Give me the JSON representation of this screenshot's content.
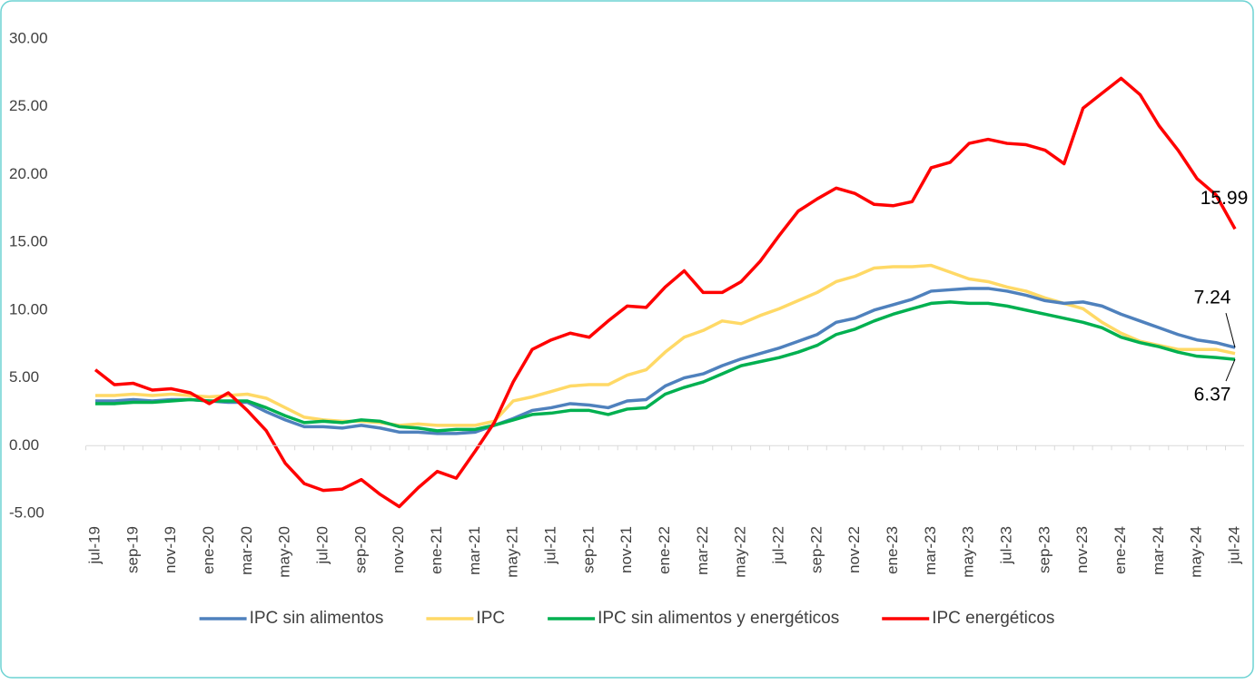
{
  "chart_data": {
    "type": "line",
    "categories": [
      "jul-19",
      null,
      "sep-19",
      null,
      "nov-19",
      null,
      "ene-20",
      null,
      "mar-20",
      null,
      "may-20",
      null,
      "jul-20",
      null,
      "sep-20",
      null,
      "nov-20",
      null,
      "ene-21",
      null,
      "mar-21",
      null,
      "may-21",
      null,
      "jul-21",
      null,
      "sep-21",
      null,
      "nov-21",
      null,
      "ene-22",
      null,
      "mar-22",
      null,
      "may-22",
      null,
      "jul-22",
      null,
      "sep-22",
      null,
      "nov-22",
      null,
      "ene-23",
      null,
      "mar-23",
      null,
      "may-23",
      null,
      "jul-23",
      null,
      "sep-23",
      null,
      "nov-23",
      null,
      "ene-24",
      null,
      "mar-24",
      null,
      "may-24",
      null,
      "jul-24"
    ],
    "series": [
      {
        "name": "IPC sin alimentos",
        "color": "#4f81bd",
        "values": [
          3.3,
          3.3,
          3.4,
          3.3,
          3.4,
          3.4,
          3.3,
          3.2,
          3.2,
          2.5,
          1.9,
          1.4,
          1.4,
          1.3,
          1.5,
          1.3,
          1.0,
          1.0,
          0.9,
          0.9,
          1.0,
          1.5,
          2.0,
          2.6,
          2.8,
          3.1,
          3.0,
          2.8,
          3.3,
          3.4,
          4.4,
          5.0,
          5.3,
          5.9,
          6.4,
          6.8,
          7.2,
          7.7,
          8.2,
          9.1,
          9.4,
          10.0,
          10.4,
          10.8,
          11.4,
          11.5,
          11.6,
          11.6,
          11.4,
          11.1,
          10.7,
          10.5,
          10.6,
          10.3,
          9.7,
          9.2,
          8.7,
          8.2,
          7.8,
          7.6,
          7.24
        ]
      },
      {
        "name": "IPC",
        "color": "#ffd966",
        "values": [
          3.7,
          3.7,
          3.8,
          3.7,
          3.8,
          3.7,
          3.6,
          3.7,
          3.8,
          3.5,
          2.8,
          2.1,
          1.9,
          1.8,
          1.8,
          1.7,
          1.5,
          1.6,
          1.5,
          1.5,
          1.5,
          1.8,
          3.3,
          3.6,
          4.0,
          4.4,
          4.5,
          4.5,
          5.2,
          5.6,
          6.9,
          8.0,
          8.5,
          9.2,
          9.0,
          9.6,
          10.1,
          10.7,
          11.3,
          12.1,
          12.5,
          13.1,
          13.2,
          13.2,
          13.3,
          12.8,
          12.3,
          12.1,
          11.7,
          11.4,
          10.9,
          10.5,
          10.1,
          9.1,
          8.3,
          7.7,
          7.4,
          7.1,
          7.1,
          7.1,
          6.8
        ]
      },
      {
        "name": "IPC sin alimentos y energéticos",
        "color": "#00b050",
        "values": [
          3.1,
          3.1,
          3.2,
          3.2,
          3.3,
          3.4,
          3.3,
          3.3,
          3.3,
          2.8,
          2.2,
          1.7,
          1.8,
          1.7,
          1.9,
          1.8,
          1.4,
          1.3,
          1.1,
          1.2,
          1.2,
          1.5,
          1.9,
          2.3,
          2.4,
          2.6,
          2.6,
          2.3,
          2.7,
          2.8,
          3.8,
          4.3,
          4.7,
          5.3,
          5.9,
          6.2,
          6.5,
          6.9,
          7.4,
          8.2,
          8.6,
          9.2,
          9.7,
          10.1,
          10.5,
          10.6,
          10.5,
          10.5,
          10.3,
          10.0,
          9.7,
          9.4,
          9.1,
          8.7,
          8.0,
          7.6,
          7.3,
          6.9,
          6.6,
          6.5,
          6.37
        ]
      },
      {
        "name": "IPC energéticos",
        "color": "#ff0000",
        "values": [
          5.6,
          4.5,
          4.6,
          4.1,
          4.2,
          3.9,
          3.1,
          3.9,
          2.6,
          1.1,
          -1.3,
          -2.8,
          -3.3,
          -3.2,
          -2.5,
          -3.6,
          -4.5,
          -3.1,
          -1.9,
          -2.4,
          -0.4,
          1.7,
          4.7,
          7.1,
          7.8,
          8.3,
          8.0,
          9.2,
          10.3,
          10.2,
          11.7,
          12.9,
          11.3,
          11.3,
          12.1,
          13.6,
          15.5,
          17.3,
          18.2,
          19.0,
          18.6,
          17.8,
          17.7,
          18.0,
          20.5,
          20.9,
          22.3,
          22.6,
          22.3,
          22.2,
          21.8,
          20.8,
          24.9,
          26.0,
          27.1,
          25.9,
          23.6,
          21.8,
          19.7,
          18.5,
          15.99
        ]
      }
    ],
    "ylim": [
      -5,
      30
    ],
    "yticks": [
      {
        "value": -5,
        "label": "-5.00"
      },
      {
        "value": 0,
        "label": "0.00"
      },
      {
        "value": 5,
        "label": "5.00"
      },
      {
        "value": 10,
        "label": "10.00"
      },
      {
        "value": 15,
        "label": "15.00"
      },
      {
        "value": 20,
        "label": "20.00"
      },
      {
        "value": 25,
        "label": "25.00"
      },
      {
        "value": 30,
        "label": "30.00"
      }
    ],
    "legend": "bottom"
  }
}
